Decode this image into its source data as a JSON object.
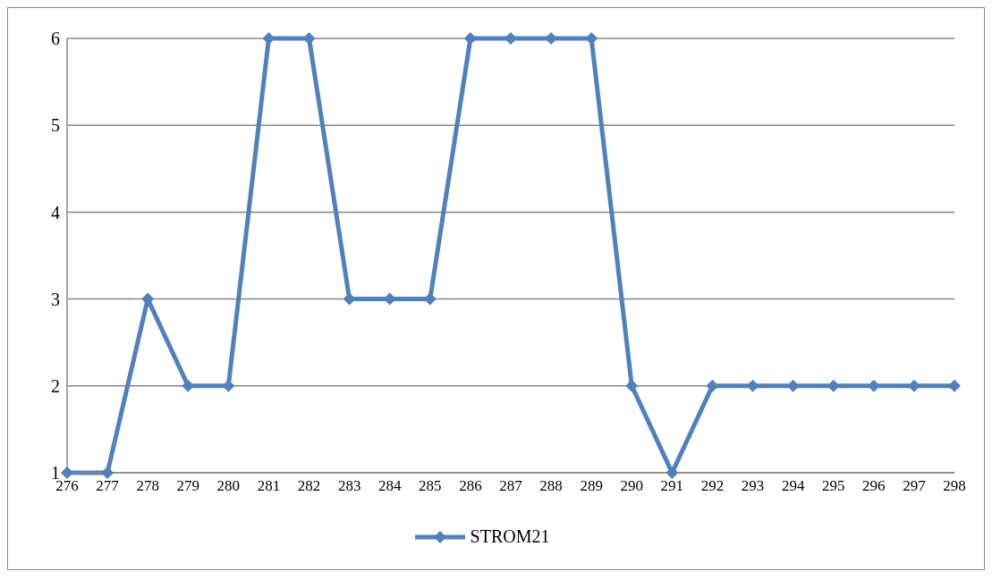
{
  "chart_data": {
    "type": "line",
    "categories": [
      "276",
      "277",
      "278",
      "279",
      "280",
      "281",
      "282",
      "283",
      "284",
      "285",
      "286",
      "287",
      "288",
      "289",
      "290",
      "291",
      "292",
      "293",
      "294",
      "295",
      "296",
      "297",
      "298"
    ],
    "series": [
      {
        "name": "STROM21",
        "color": "#4f81bd",
        "values": [
          1,
          1,
          3,
          2,
          2,
          6,
          6,
          3,
          3,
          3,
          6,
          6,
          6,
          6,
          2,
          1,
          2,
          2,
          2,
          2,
          2,
          2,
          2
        ]
      }
    ],
    "ylim": [
      1,
      6
    ],
    "yticks": [
      1,
      2,
      3,
      4,
      5,
      6
    ],
    "grid": "y",
    "legend": "bottom",
    "marker": "diamond",
    "line_style": "solid"
  }
}
